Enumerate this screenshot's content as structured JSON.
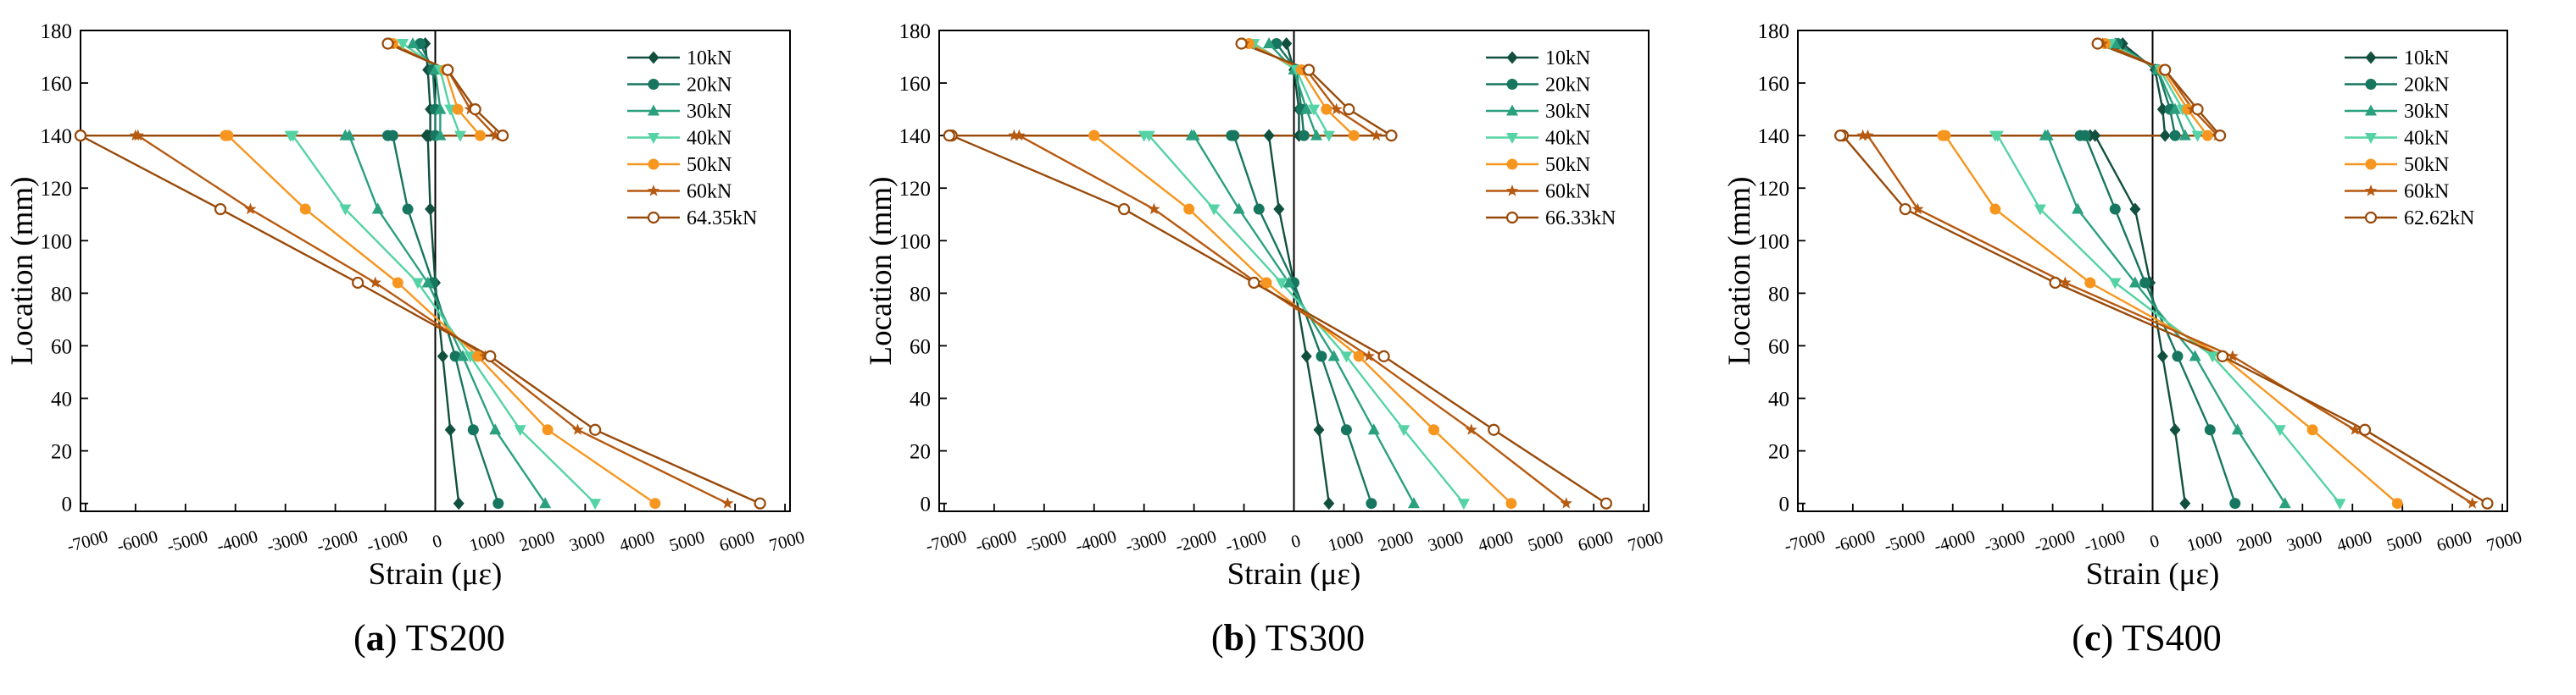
{
  "colors": {
    "10kN": "#114f3f",
    "20kN": "#17765f",
    "30kN": "#2aa07f",
    "40kN": "#55d3a4",
    "50kN": "#f7961f",
    "60kN": "#b65a12",
    "ult": "#984a0a"
  },
  "chart_data": [
    {
      "type": "line",
      "id": "a",
      "caption_letter": "a",
      "caption_paren_open": "(",
      "caption_paren_close": ")",
      "caption_name": "TS200",
      "xlabel": "Strain (με)",
      "ylabel": "Location (mm)",
      "xlim": [
        -7100,
        7100
      ],
      "ylim": [
        -3,
        180
      ],
      "xticks": [
        -7000,
        -6000,
        -5000,
        -4000,
        -3000,
        -2000,
        -1000,
        0,
        1000,
        2000,
        3000,
        4000,
        5000,
        6000,
        7000
      ],
      "xtick_labels": [
        "-7000",
        "-6000",
        "-5000",
        "-4000",
        "-3000",
        "-2000",
        "-1000",
        "0",
        "1000",
        "2000",
        "3000",
        "4000",
        "5000",
        "6000",
        "7000"
      ],
      "yticks": [
        0,
        20,
        40,
        60,
        80,
        100,
        120,
        140,
        160,
        180
      ],
      "ytick_labels": [
        "0",
        "20",
        "40",
        "60",
        "80",
        "100",
        "120",
        "140",
        "160",
        "180"
      ],
      "legend_position": "top-right",
      "series": [
        {
          "name": "10kN",
          "marker": "diamond",
          "color": "#114f3f",
          "x": [
            470,
            300,
            150,
            0,
            -100,
            -150,
            -180,
            -100,
            -100,
            -150,
            -200
          ],
          "y": [
            0,
            28,
            56,
            84,
            112,
            140,
            140,
            140,
            150,
            165,
            175
          ]
        },
        {
          "name": "20kN",
          "marker": "circle",
          "color": "#17765f",
          "x": [
            1260,
            760,
            400,
            -50,
            -550,
            -850,
            -950,
            0,
            0,
            -50,
            -300
          ],
          "y": [
            0,
            28,
            56,
            84,
            112,
            140,
            140,
            140,
            150,
            165,
            175
          ]
        },
        {
          "name": "30kN",
          "marker": "triangle-up",
          "color": "#2aa07f",
          "x": [
            2200,
            1200,
            550,
            -150,
            -1150,
            -1720,
            -1800,
            100,
            100,
            0,
            -450
          ],
          "y": [
            0,
            28,
            56,
            84,
            112,
            140,
            140,
            140,
            150,
            165,
            175
          ]
        },
        {
          "name": "40kN",
          "marker": "triangle-down",
          "color": "#55d3a4",
          "x": [
            3200,
            1700,
            700,
            -350,
            -1800,
            -2850,
            -2900,
            500,
            300,
            100,
            -650
          ],
          "y": [
            0,
            28,
            56,
            84,
            112,
            140,
            140,
            140,
            150,
            165,
            175
          ]
        },
        {
          "name": "50kN",
          "marker": "circle",
          "color": "#f7961f",
          "x": [
            4400,
            2250,
            850,
            -750,
            -2600,
            -4150,
            -4200,
            900,
            450,
            200,
            -850
          ],
          "y": [
            0,
            28,
            56,
            84,
            112,
            140,
            140,
            140,
            150,
            165,
            175
          ]
        },
        {
          "name": "60kN",
          "marker": "star",
          "color": "#b65a12",
          "x": [
            5850,
            2850,
            1000,
            -1200,
            -3700,
            -5950,
            -6000,
            1200,
            700,
            250,
            -900
          ],
          "y": [
            0,
            28,
            56,
            84,
            112,
            140,
            140,
            140,
            150,
            165,
            175
          ]
        },
        {
          "name": "64.35kN",
          "marker": "open-circle",
          "color": "#984a0a",
          "x": [
            6500,
            3200,
            1100,
            -1550,
            -4300,
            -7100,
            -7100,
            1350,
            800,
            250,
            -950
          ],
          "y": [
            0,
            28,
            56,
            84,
            112,
            140,
            140,
            140,
            150,
            165,
            175
          ]
        }
      ]
    },
    {
      "type": "line",
      "id": "b",
      "caption_letter": "b",
      "caption_paren_open": "(",
      "caption_paren_close": ")",
      "caption_name": "TS300",
      "xlabel": "Strain (με)",
      "ylabel": "Location (mm)",
      "xlim": [
        -7100,
        7100
      ],
      "ylim": [
        -3,
        180
      ],
      "xticks": [
        -7000,
        -6000,
        -5000,
        -4000,
        -3000,
        -2000,
        -1000,
        0,
        1000,
        2000,
        3000,
        4000,
        5000,
        6000,
        7000
      ],
      "xtick_labels": [
        "-7000",
        "-6000",
        "-5000",
        "-4000",
        "-3000",
        "-2000",
        "-1000",
        "0",
        "1000",
        "2000",
        "3000",
        "4000",
        "5000",
        "6000",
        "7000"
      ],
      "yticks": [
        0,
        20,
        40,
        60,
        80,
        100,
        120,
        140,
        160,
        180
      ],
      "ytick_labels": [
        "0",
        "20",
        "40",
        "60",
        "80",
        "100",
        "120",
        "140",
        "160",
        "180"
      ],
      "legend_position": "top-right",
      "series": [
        {
          "name": "10kN",
          "marker": "diamond",
          "color": "#114f3f",
          "x": [
            700,
            500,
            250,
            0,
            -300,
            -500,
            -500,
            100,
            100,
            0,
            -150
          ],
          "y": [
            0,
            28,
            56,
            84,
            112,
            140,
            140,
            140,
            150,
            165,
            175
          ]
        },
        {
          "name": "20kN",
          "marker": "circle",
          "color": "#17765f",
          "x": [
            1550,
            1050,
            550,
            0,
            -700,
            -1200,
            -1250,
            200,
            150,
            50,
            -350
          ],
          "y": [
            0,
            28,
            56,
            84,
            112,
            140,
            140,
            140,
            150,
            165,
            175
          ]
        },
        {
          "name": "30kN",
          "marker": "triangle-up",
          "color": "#2aa07f",
          "x": [
            2400,
            1600,
            800,
            -100,
            -1100,
            -2000,
            -2050,
            450,
            250,
            0,
            -500
          ],
          "y": [
            0,
            28,
            56,
            84,
            112,
            140,
            140,
            140,
            150,
            165,
            175
          ]
        },
        {
          "name": "40kN",
          "marker": "triangle-down",
          "color": "#55d3a4",
          "x": [
            3400,
            2200,
            1050,
            -250,
            -1600,
            -2900,
            -3000,
            700,
            400,
            50,
            -800
          ],
          "y": [
            0,
            28,
            56,
            84,
            112,
            140,
            140,
            140,
            150,
            165,
            175
          ]
        },
        {
          "name": "50kN",
          "marker": "circle",
          "color": "#f7961f",
          "x": [
            4350,
            2800,
            1300,
            -550,
            -2100,
            -4000,
            -4000,
            1200,
            650,
            150,
            -900
          ],
          "y": [
            0,
            28,
            56,
            84,
            112,
            140,
            140,
            140,
            150,
            165,
            175
          ]
        },
        {
          "name": "60kN",
          "marker": "star",
          "color": "#b65a12",
          "x": [
            5450,
            3550,
            1500,
            -750,
            -2800,
            -5500,
            -5600,
            1650,
            850,
            250,
            -1000
          ],
          "y": [
            0,
            28,
            56,
            84,
            112,
            140,
            140,
            140,
            150,
            165,
            175
          ]
        },
        {
          "name": "66.33kN",
          "marker": "open-circle",
          "color": "#984a0a",
          "x": [
            6250,
            4000,
            1800,
            -800,
            -3400,
            -6850,
            -6900,
            1950,
            1100,
            300,
            -1050
          ],
          "y": [
            0,
            28,
            56,
            84,
            112,
            140,
            140,
            140,
            150,
            165,
            175
          ]
        }
      ]
    },
    {
      "type": "line",
      "id": "c",
      "caption_letter": "c",
      "caption_paren_open": "(",
      "caption_paren_close": ")",
      "caption_name": "TS400",
      "xlabel": "Strain (με)",
      "ylabel": "Location (mm)",
      "xlim": [
        -7100,
        7100
      ],
      "ylim": [
        -3,
        180
      ],
      "xticks": [
        -7000,
        -6000,
        -5000,
        -4000,
        -3000,
        -2000,
        -1000,
        0,
        1000,
        2000,
        3000,
        4000,
        5000,
        6000,
        7000
      ],
      "xtick_labels": [
        "-7000",
        "-6000",
        "-5000",
        "-4000",
        "-3000",
        "-2000",
        "-1000",
        "0",
        "1000",
        "2000",
        "3000",
        "4000",
        "5000",
        "6000",
        "7000"
      ],
      "yticks": [
        0,
        20,
        40,
        60,
        80,
        100,
        120,
        140,
        160,
        180
      ],
      "ytick_labels": [
        "0",
        "20",
        "40",
        "60",
        "80",
        "100",
        "120",
        "140",
        "160",
        "180"
      ],
      "legend_position": "top-right",
      "series": [
        {
          "name": "10kN",
          "marker": "diamond",
          "color": "#114f3f",
          "x": [
            650,
            450,
            200,
            -50,
            -350,
            -1150,
            -1250,
            250,
            200,
            50,
            -600
          ],
          "y": [
            0,
            28,
            56,
            84,
            112,
            140,
            140,
            140,
            150,
            165,
            175
          ]
        },
        {
          "name": "20kN",
          "marker": "circle",
          "color": "#17765f",
          "x": [
            1650,
            1150,
            500,
            -150,
            -750,
            -1350,
            -1450,
            450,
            350,
            100,
            -700
          ],
          "y": [
            0,
            28,
            56,
            84,
            112,
            140,
            140,
            140,
            150,
            165,
            175
          ]
        },
        {
          "name": "30kN",
          "marker": "triangle-up",
          "color": "#2aa07f",
          "x": [
            2650,
            1700,
            850,
            -350,
            -1500,
            -2100,
            -2150,
            650,
            450,
            100,
            -750
          ],
          "y": [
            0,
            28,
            56,
            84,
            112,
            140,
            140,
            140,
            150,
            165,
            175
          ]
        },
        {
          "name": "40kN",
          "marker": "triangle-down",
          "color": "#55d3a4",
          "x": [
            3750,
            2550,
            1200,
            -750,
            -2250,
            -3100,
            -3150,
            900,
            600,
            150,
            -850
          ],
          "y": [
            0,
            28,
            56,
            84,
            112,
            140,
            140,
            140,
            150,
            165,
            175
          ]
        },
        {
          "name": "50kN",
          "marker": "circle",
          "color": "#f7961f",
          "x": [
            4900,
            3200,
            1400,
            -1250,
            -3150,
            -4150,
            -4200,
            1100,
            700,
            200,
            -950
          ],
          "y": [
            0,
            28,
            56,
            84,
            112,
            140,
            140,
            140,
            150,
            165,
            175
          ]
        },
        {
          "name": "60kN",
          "marker": "star",
          "color": "#b65a12",
          "x": [
            6400,
            4050,
            1600,
            -1750,
            -4700,
            -5700,
            -5800,
            1300,
            800,
            250,
            -1000
          ],
          "y": [
            0,
            28,
            56,
            84,
            112,
            140,
            140,
            140,
            150,
            165,
            175
          ]
        },
        {
          "name": "62.62kN",
          "marker": "open-circle",
          "color": "#984a0a",
          "x": [
            6700,
            4250,
            1400,
            -1950,
            -4950,
            -6200,
            -6250,
            1350,
            900,
            250,
            -1100
          ],
          "y": [
            0,
            28,
            56,
            84,
            112,
            140,
            140,
            140,
            150,
            165,
            175
          ]
        }
      ]
    }
  ]
}
